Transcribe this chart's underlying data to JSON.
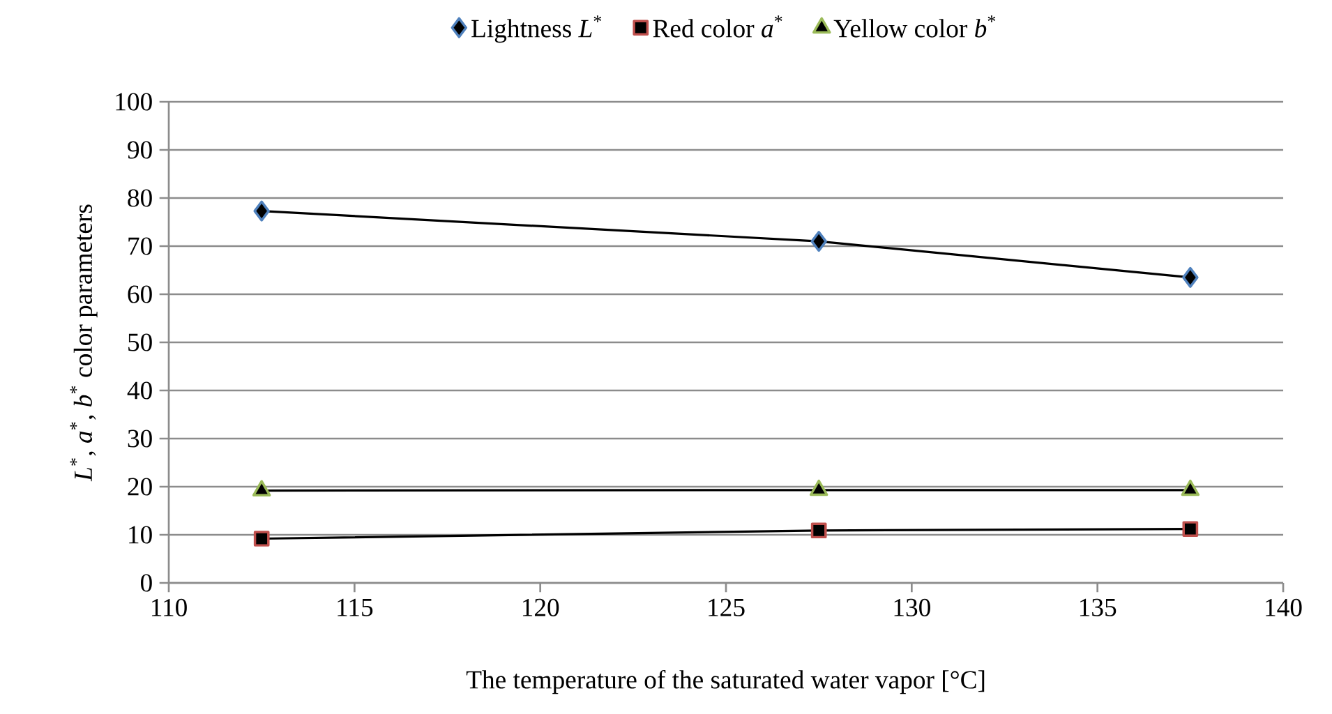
{
  "chart_data": {
    "type": "line",
    "xlabel": "The temperature of the saturated water vapor [°C]",
    "ylabel": "*L*$^{*}$, *a*$^{*}$, *b*$^{*}$ color parameters",
    "x": [
      112.5,
      127.5,
      137.5
    ],
    "series": [
      {
        "name": "Lightness *L*$^{*}$",
        "color": "#4f81bd",
        "marker": "diamond",
        "values": [
          77.3,
          71.0,
          63.5
        ]
      },
      {
        "name": "Red color *a*$^{*}$",
        "color": "#c0504d",
        "marker": "square",
        "values": [
          9.2,
          10.9,
          11.2
        ]
      },
      {
        "name": "Yellow color *b*$^{*}$",
        "color": "#9bbb59",
        "marker": "triangle",
        "values": [
          19.2,
          19.3,
          19.3
        ]
      }
    ],
    "xlim": [
      110,
      140
    ],
    "xticks": [
      110,
      115,
      120,
      125,
      130,
      135,
      140
    ],
    "ylim": [
      0,
      100
    ],
    "yticks": [
      0,
      10,
      20,
      30,
      40,
      50,
      60,
      70,
      80,
      90,
      100
    ],
    "grid": "y",
    "legend": "top"
  }
}
